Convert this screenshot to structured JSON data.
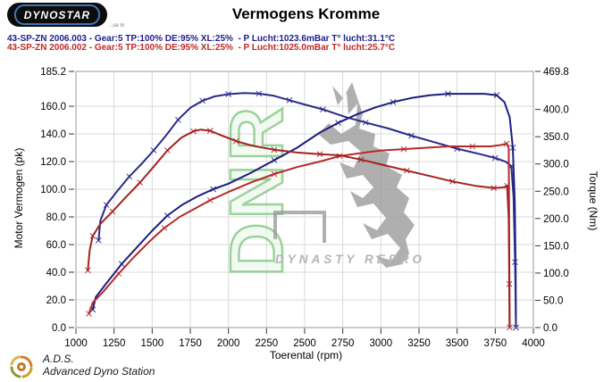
{
  "header": {
    "logo_text": "DYNOSTAR",
    "logo_sub": "..se m",
    "title": "Vermogens Kromme",
    "runs": [
      {
        "label": "43-SP-ZN 2006.003 - Gear:5 TP:100% DE:95% XL:25%  - P Lucht:1023.6mBar T° lucht:31.1°C",
        "color": "#20208c"
      },
      {
        "label": "43-SP-ZN 2006.002 - Gear:5 TP:100% DE:95% XL:25%  - P Lucht:1025.0mBar T° lucht:25.7°C",
        "color": "#c22727"
      }
    ]
  },
  "watermark": {
    "letters": "DNR",
    "name": "DYNASTY REPRO",
    "letter_color": "#7cc47c",
    "shape_color": "#9b9b9b",
    "text_color": "#b5b5b5"
  },
  "footer": {
    "abbr": "A.D.S.",
    "name": "Advanced Dyno Station"
  },
  "chart_data": {
    "type": "line",
    "title": "Vermogens Kromme",
    "xlabel": "Toerental (rpm)",
    "ylabel_left": "Motor Vermogen (pk)",
    "ylabel_right": "Torque (Nm)",
    "xlim": [
      1000,
      4000
    ],
    "ylim_left": [
      0,
      185.2
    ],
    "ylim_right": [
      0,
      469.8
    ],
    "grid": true,
    "legend_position": "none",
    "x_ticks": [
      {
        "v": 1000,
        "l": "1000"
      },
      {
        "v": 1250,
        "l": "1250"
      },
      {
        "v": 1500,
        "l": "1500"
      },
      {
        "v": 1750,
        "l": "1750"
      },
      {
        "v": 2000,
        "l": "2000"
      },
      {
        "v": 2250,
        "l": "2250"
      },
      {
        "v": 2500,
        "l": "2500"
      },
      {
        "v": 2750,
        "l": "2750"
      },
      {
        "v": 3000,
        "l": "3000"
      },
      {
        "v": 3250,
        "l": "3250"
      },
      {
        "v": 3500,
        "l": "3500"
      },
      {
        "v": 3750,
        "l": "3750"
      },
      {
        "v": 4000,
        "l": "4000"
      }
    ],
    "y_ticks_left": [
      {
        "v": 0,
        "l": "0.0"
      },
      {
        "v": 20,
        "l": "20.0"
      },
      {
        "v": 40,
        "l": "40.0"
      },
      {
        "v": 60,
        "l": "60.0"
      },
      {
        "v": 80,
        "l": "80.0"
      },
      {
        "v": 100,
        "l": "100.0"
      },
      {
        "v": 120,
        "l": "120.0"
      },
      {
        "v": 140,
        "l": "140.0"
      },
      {
        "v": 160,
        "l": "160.0"
      },
      {
        "v": 185.2,
        "l": "185.2"
      }
    ],
    "y_ticks_right": [
      {
        "v": 0,
        "l": "0.0"
      },
      {
        "v": 50,
        "l": "50.0"
      },
      {
        "v": 100,
        "l": "100.0"
      },
      {
        "v": 150,
        "l": "150.0"
      },
      {
        "v": 200,
        "l": "200.0"
      },
      {
        "v": 250,
        "l": "250.0"
      },
      {
        "v": 300,
        "l": "300.0"
      },
      {
        "v": 350,
        "l": "350.0"
      },
      {
        "v": 400,
        "l": "400.0"
      },
      {
        "v": 469.8,
        "l": "469.8"
      }
    ],
    "series": [
      {
        "name": "Motor Vermogen 2006.003 (pk)",
        "axis": "left",
        "color": "#1d1d80",
        "marker": "x",
        "marker_every": 3,
        "points": [
          [
            1110,
            13
          ],
          [
            1130,
            22
          ],
          [
            1200,
            32
          ],
          [
            1300,
            46
          ],
          [
            1400,
            58
          ],
          [
            1500,
            70
          ],
          [
            1600,
            81
          ],
          [
            1700,
            89
          ],
          [
            1800,
            95
          ],
          [
            1900,
            100
          ],
          [
            2000,
            104
          ],
          [
            2150,
            112
          ],
          [
            2300,
            121
          ],
          [
            2450,
            130
          ],
          [
            2600,
            141
          ],
          [
            2720,
            148
          ],
          [
            2840,
            154
          ],
          [
            2960,
            159
          ],
          [
            3080,
            163
          ],
          [
            3200,
            166
          ],
          [
            3320,
            168
          ],
          [
            3440,
            169
          ],
          [
            3560,
            169
          ],
          [
            3680,
            169
          ],
          [
            3760,
            168
          ],
          [
            3810,
            163
          ],
          [
            3845,
            152
          ],
          [
            3865,
            130
          ],
          [
            3878,
            90
          ],
          [
            3884,
            40
          ],
          [
            3886,
            0
          ]
        ]
      },
      {
        "name": "Torque 2006.003 (Nm)",
        "axis": "right",
        "color": "#2a2a8a",
        "marker": "x",
        "marker_every": 2,
        "points": [
          [
            1148,
            160
          ],
          [
            1160,
            196
          ],
          [
            1200,
            225
          ],
          [
            1270,
            250
          ],
          [
            1350,
            277
          ],
          [
            1430,
            300
          ],
          [
            1510,
            325
          ],
          [
            1590,
            352
          ],
          [
            1670,
            381
          ],
          [
            1750,
            403
          ],
          [
            1830,
            416
          ],
          [
            1910,
            424
          ],
          [
            2000,
            428
          ],
          [
            2100,
            430
          ],
          [
            2200,
            429
          ],
          [
            2300,
            425
          ],
          [
            2400,
            417
          ],
          [
            2500,
            409
          ],
          [
            2620,
            400
          ],
          [
            2770,
            386
          ],
          [
            2900,
            376
          ],
          [
            3050,
            365
          ],
          [
            3200,
            352
          ],
          [
            3350,
            340
          ],
          [
            3500,
            328
          ],
          [
            3650,
            318
          ],
          [
            3750,
            311
          ],
          [
            3820,
            304
          ],
          [
            3855,
            296
          ],
          [
            3870,
            240
          ],
          [
            3880,
            120
          ],
          [
            3886,
            0
          ]
        ]
      },
      {
        "name": "Motor Vermogen 2006.002 (pk)",
        "axis": "left",
        "color": "#b62a2a",
        "marker": "x",
        "marker_every": 3,
        "points": [
          [
            1085,
            10
          ],
          [
            1110,
            18
          ],
          [
            1180,
            26
          ],
          [
            1280,
            39
          ],
          [
            1380,
            51
          ],
          [
            1480,
            62
          ],
          [
            1580,
            72
          ],
          [
            1680,
            80
          ],
          [
            1780,
            86
          ],
          [
            1880,
            92
          ],
          [
            2000,
            98
          ],
          [
            2150,
            105
          ],
          [
            2300,
            111
          ],
          [
            2450,
            116
          ],
          [
            2600,
            120
          ],
          [
            2730,
            124
          ],
          [
            2860,
            126
          ],
          [
            3000,
            128
          ],
          [
            3150,
            129
          ],
          [
            3300,
            130
          ],
          [
            3450,
            131
          ],
          [
            3600,
            131
          ],
          [
            3720,
            131
          ],
          [
            3790,
            132
          ],
          [
            3825,
            133
          ],
          [
            3838,
            130
          ],
          [
            3842,
            60
          ],
          [
            3844,
            0
          ]
        ]
      },
      {
        "name": "Torque 2006.002 (Nm)",
        "axis": "right",
        "color": "#a32121",
        "marker": "x",
        "marker_every": 2,
        "points": [
          [
            1078,
            105
          ],
          [
            1090,
            142
          ],
          [
            1110,
            168
          ],
          [
            1160,
            190
          ],
          [
            1240,
            213
          ],
          [
            1330,
            240
          ],
          [
            1420,
            266
          ],
          [
            1510,
            295
          ],
          [
            1600,
            325
          ],
          [
            1690,
            348
          ],
          [
            1770,
            360
          ],
          [
            1820,
            363
          ],
          [
            1880,
            361
          ],
          [
            1950,
            353
          ],
          [
            2050,
            342
          ],
          [
            2150,
            334
          ],
          [
            2300,
            326
          ],
          [
            2450,
            321
          ],
          [
            2600,
            318
          ],
          [
            2730,
            316
          ],
          [
            2870,
            308
          ],
          [
            3020,
            298
          ],
          [
            3170,
            288
          ],
          [
            3320,
            278
          ],
          [
            3470,
            268
          ],
          [
            3620,
            260
          ],
          [
            3740,
            256
          ],
          [
            3800,
            257
          ],
          [
            3828,
            260
          ],
          [
            3838,
            200
          ],
          [
            3842,
            80
          ],
          [
            3844,
            0
          ]
        ]
      }
    ]
  }
}
